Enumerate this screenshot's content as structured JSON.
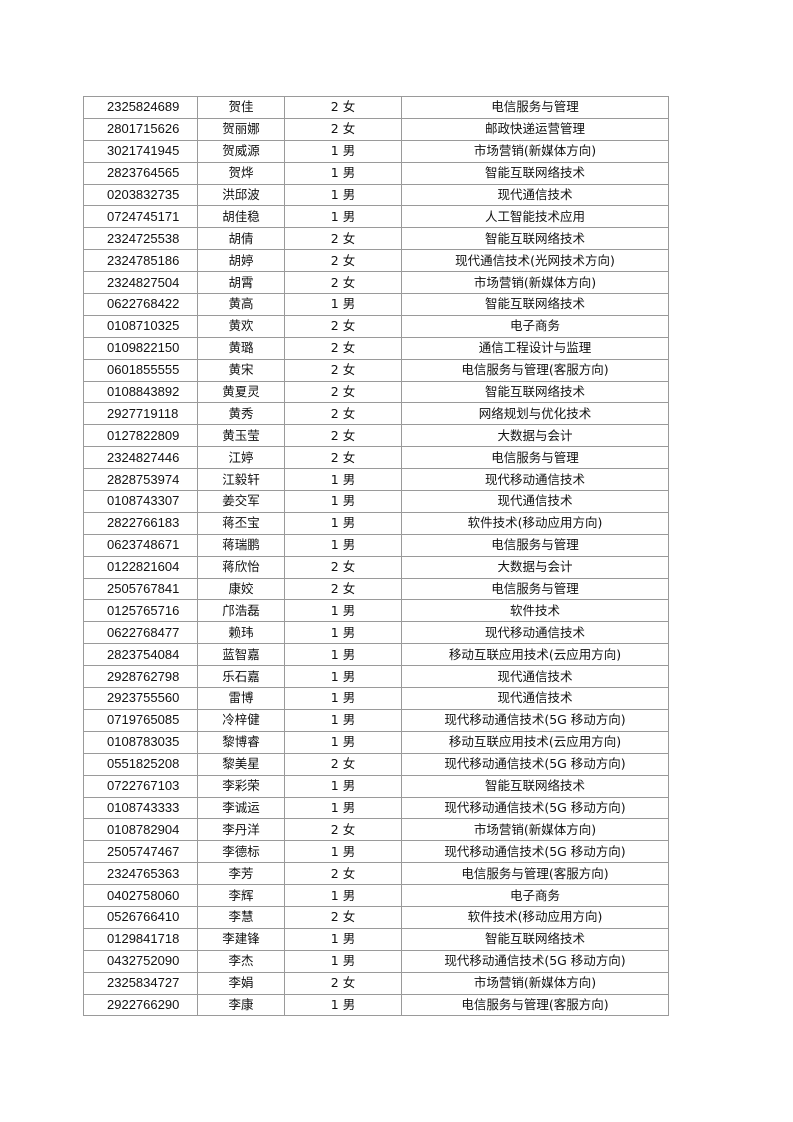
{
  "rows": [
    [
      "2325824689",
      "贺佳",
      "2 女",
      "电信服务与管理"
    ],
    [
      "2801715626",
      "贺丽娜",
      "2 女",
      "邮政快递运营管理"
    ],
    [
      "3021741945",
      "贺威源",
      "1 男",
      "市场营销(新媒体方向)"
    ],
    [
      "2823764565",
      "贺烨",
      "1 男",
      "智能互联网络技术"
    ],
    [
      "0203832735",
      "洪邱波",
      "1 男",
      "现代通信技术"
    ],
    [
      "0724745171",
      "胡佳稳",
      "1 男",
      "人工智能技术应用"
    ],
    [
      "2324725538",
      "胡倩",
      "2 女",
      "智能互联网络技术"
    ],
    [
      "2324785186",
      "胡婷",
      "2 女",
      "现代通信技术(光网技术方向)"
    ],
    [
      "2324827504",
      "胡霄",
      "2 女",
      "市场营销(新媒体方向)"
    ],
    [
      "0622768422",
      "黄高",
      "1 男",
      "智能互联网络技术"
    ],
    [
      "0108710325",
      "黄欢",
      "2 女",
      "电子商务"
    ],
    [
      "0109822150",
      "黄璐",
      "2 女",
      "通信工程设计与监理"
    ],
    [
      "0601855555",
      "黄宋",
      "2 女",
      "电信服务与管理(客服方向)"
    ],
    [
      "0108843892",
      "黄夏灵",
      "2 女",
      "智能互联网络技术"
    ],
    [
      "2927719118",
      "黄秀",
      "2 女",
      "网络规划与优化技术"
    ],
    [
      "0127822809",
      "黄玉莹",
      "2 女",
      "大数据与会计"
    ],
    [
      "2324827446",
      "江婷",
      "2 女",
      "电信服务与管理"
    ],
    [
      "2828753974",
      "江毅轩",
      "1 男",
      "现代移动通信技术"
    ],
    [
      "0108743307",
      "姜交军",
      "1 男",
      "现代通信技术"
    ],
    [
      "2822766183",
      "蒋丕宝",
      "1 男",
      "软件技术(移动应用方向)"
    ],
    [
      "0623748671",
      "蒋瑞鹏",
      "1 男",
      "电信服务与管理"
    ],
    [
      "0122821604",
      "蒋欣怡",
      "2 女",
      "大数据与会计"
    ],
    [
      "2505767841",
      "康姣",
      "2 女",
      "电信服务与管理"
    ],
    [
      "0125765716",
      "邝浩磊",
      "1 男",
      "软件技术"
    ],
    [
      "0622768477",
      "赖玮",
      "1 男",
      "现代移动通信技术"
    ],
    [
      "2823754084",
      "蓝智嘉",
      "1 男",
      "移动互联应用技术(云应用方向)"
    ],
    [
      "2928762798",
      "乐石嘉",
      "1 男",
      "现代通信技术"
    ],
    [
      "2923755560",
      "雷博",
      "1 男",
      "现代通信技术"
    ],
    [
      "0719765085",
      "冷梓健",
      "1 男",
      "现代移动通信技术(5G 移动方向)"
    ],
    [
      "0108783035",
      "黎博睿",
      "1 男",
      "移动互联应用技术(云应用方向)"
    ],
    [
      "0551825208",
      "黎美星",
      "2 女",
      "现代移动通信技术(5G 移动方向)"
    ],
    [
      "0722767103",
      "李彩荣",
      "1 男",
      "智能互联网络技术"
    ],
    [
      "0108743333",
      "李诚运",
      "1 男",
      "现代移动通信技术(5G 移动方向)"
    ],
    [
      "0108782904",
      "李丹洋",
      "2 女",
      "市场营销(新媒体方向)"
    ],
    [
      "2505747467",
      "李德标",
      "1 男",
      "现代移动通信技术(5G 移动方向)"
    ],
    [
      "2324765363",
      "李芳",
      "2 女",
      "电信服务与管理(客服方向)"
    ],
    [
      "0402758060",
      "李辉",
      "1 男",
      "电子商务"
    ],
    [
      "0526766410",
      "李慧",
      "2 女",
      "软件技术(移动应用方向)"
    ],
    [
      "0129841718",
      "李建锋",
      "1 男",
      "智能互联网络技术"
    ],
    [
      "0432752090",
      "李杰",
      "1 男",
      "现代移动通信技术(5G 移动方向)"
    ],
    [
      "2325834727",
      "李娟",
      "2 女",
      "市场营销(新媒体方向)"
    ],
    [
      "2922766290",
      "李康",
      "1 男",
      "电信服务与管理(客服方向)"
    ]
  ]
}
